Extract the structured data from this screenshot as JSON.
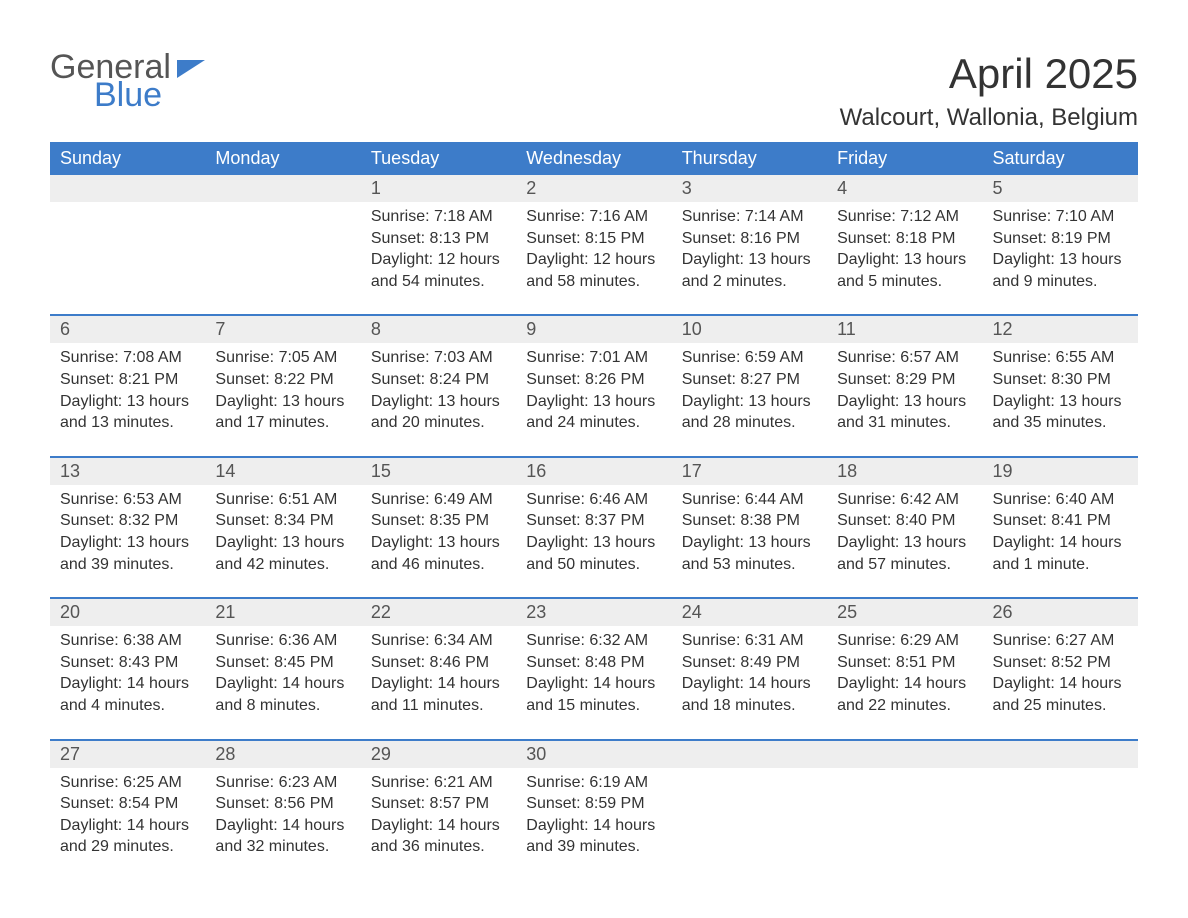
{
  "logo": {
    "line1": "General",
    "line2": "Blue"
  },
  "title": "April 2025",
  "location": "Walcourt, Wallonia, Belgium",
  "colors": {
    "header_bar": "#3d7cc9",
    "daynum_bg": "#eeeeee",
    "text": "#333333",
    "background": "#ffffff"
  },
  "weekdays": [
    "Sunday",
    "Monday",
    "Tuesday",
    "Wednesday",
    "Thursday",
    "Friday",
    "Saturday"
  ],
  "weeks": [
    [
      {
        "empty": true
      },
      {
        "empty": true
      },
      {
        "day": "1",
        "sunrise": "Sunrise: 7:18 AM",
        "sunset": "Sunset: 8:13 PM",
        "dl1": "Daylight: 12 hours",
        "dl2": "and 54 minutes."
      },
      {
        "day": "2",
        "sunrise": "Sunrise: 7:16 AM",
        "sunset": "Sunset: 8:15 PM",
        "dl1": "Daylight: 12 hours",
        "dl2": "and 58 minutes."
      },
      {
        "day": "3",
        "sunrise": "Sunrise: 7:14 AM",
        "sunset": "Sunset: 8:16 PM",
        "dl1": "Daylight: 13 hours",
        "dl2": "and 2 minutes."
      },
      {
        "day": "4",
        "sunrise": "Sunrise: 7:12 AM",
        "sunset": "Sunset: 8:18 PM",
        "dl1": "Daylight: 13 hours",
        "dl2": "and 5 minutes."
      },
      {
        "day": "5",
        "sunrise": "Sunrise: 7:10 AM",
        "sunset": "Sunset: 8:19 PM",
        "dl1": "Daylight: 13 hours",
        "dl2": "and 9 minutes."
      }
    ],
    [
      {
        "day": "6",
        "sunrise": "Sunrise: 7:08 AM",
        "sunset": "Sunset: 8:21 PM",
        "dl1": "Daylight: 13 hours",
        "dl2": "and 13 minutes."
      },
      {
        "day": "7",
        "sunrise": "Sunrise: 7:05 AM",
        "sunset": "Sunset: 8:22 PM",
        "dl1": "Daylight: 13 hours",
        "dl2": "and 17 minutes."
      },
      {
        "day": "8",
        "sunrise": "Sunrise: 7:03 AM",
        "sunset": "Sunset: 8:24 PM",
        "dl1": "Daylight: 13 hours",
        "dl2": "and 20 minutes."
      },
      {
        "day": "9",
        "sunrise": "Sunrise: 7:01 AM",
        "sunset": "Sunset: 8:26 PM",
        "dl1": "Daylight: 13 hours",
        "dl2": "and 24 minutes."
      },
      {
        "day": "10",
        "sunrise": "Sunrise: 6:59 AM",
        "sunset": "Sunset: 8:27 PM",
        "dl1": "Daylight: 13 hours",
        "dl2": "and 28 minutes."
      },
      {
        "day": "11",
        "sunrise": "Sunrise: 6:57 AM",
        "sunset": "Sunset: 8:29 PM",
        "dl1": "Daylight: 13 hours",
        "dl2": "and 31 minutes."
      },
      {
        "day": "12",
        "sunrise": "Sunrise: 6:55 AM",
        "sunset": "Sunset: 8:30 PM",
        "dl1": "Daylight: 13 hours",
        "dl2": "and 35 minutes."
      }
    ],
    [
      {
        "day": "13",
        "sunrise": "Sunrise: 6:53 AM",
        "sunset": "Sunset: 8:32 PM",
        "dl1": "Daylight: 13 hours",
        "dl2": "and 39 minutes."
      },
      {
        "day": "14",
        "sunrise": "Sunrise: 6:51 AM",
        "sunset": "Sunset: 8:34 PM",
        "dl1": "Daylight: 13 hours",
        "dl2": "and 42 minutes."
      },
      {
        "day": "15",
        "sunrise": "Sunrise: 6:49 AM",
        "sunset": "Sunset: 8:35 PM",
        "dl1": "Daylight: 13 hours",
        "dl2": "and 46 minutes."
      },
      {
        "day": "16",
        "sunrise": "Sunrise: 6:46 AM",
        "sunset": "Sunset: 8:37 PM",
        "dl1": "Daylight: 13 hours",
        "dl2": "and 50 minutes."
      },
      {
        "day": "17",
        "sunrise": "Sunrise: 6:44 AM",
        "sunset": "Sunset: 8:38 PM",
        "dl1": "Daylight: 13 hours",
        "dl2": "and 53 minutes."
      },
      {
        "day": "18",
        "sunrise": "Sunrise: 6:42 AM",
        "sunset": "Sunset: 8:40 PM",
        "dl1": "Daylight: 13 hours",
        "dl2": "and 57 minutes."
      },
      {
        "day": "19",
        "sunrise": "Sunrise: 6:40 AM",
        "sunset": "Sunset: 8:41 PM",
        "dl1": "Daylight: 14 hours",
        "dl2": "and 1 minute."
      }
    ],
    [
      {
        "day": "20",
        "sunrise": "Sunrise: 6:38 AM",
        "sunset": "Sunset: 8:43 PM",
        "dl1": "Daylight: 14 hours",
        "dl2": "and 4 minutes."
      },
      {
        "day": "21",
        "sunrise": "Sunrise: 6:36 AM",
        "sunset": "Sunset: 8:45 PM",
        "dl1": "Daylight: 14 hours",
        "dl2": "and 8 minutes."
      },
      {
        "day": "22",
        "sunrise": "Sunrise: 6:34 AM",
        "sunset": "Sunset: 8:46 PM",
        "dl1": "Daylight: 14 hours",
        "dl2": "and 11 minutes."
      },
      {
        "day": "23",
        "sunrise": "Sunrise: 6:32 AM",
        "sunset": "Sunset: 8:48 PM",
        "dl1": "Daylight: 14 hours",
        "dl2": "and 15 minutes."
      },
      {
        "day": "24",
        "sunrise": "Sunrise: 6:31 AM",
        "sunset": "Sunset: 8:49 PM",
        "dl1": "Daylight: 14 hours",
        "dl2": "and 18 minutes."
      },
      {
        "day": "25",
        "sunrise": "Sunrise: 6:29 AM",
        "sunset": "Sunset: 8:51 PM",
        "dl1": "Daylight: 14 hours",
        "dl2": "and 22 minutes."
      },
      {
        "day": "26",
        "sunrise": "Sunrise: 6:27 AM",
        "sunset": "Sunset: 8:52 PM",
        "dl1": "Daylight: 14 hours",
        "dl2": "and 25 minutes."
      }
    ],
    [
      {
        "day": "27",
        "sunrise": "Sunrise: 6:25 AM",
        "sunset": "Sunset: 8:54 PM",
        "dl1": "Daylight: 14 hours",
        "dl2": "and 29 minutes."
      },
      {
        "day": "28",
        "sunrise": "Sunrise: 6:23 AM",
        "sunset": "Sunset: 8:56 PM",
        "dl1": "Daylight: 14 hours",
        "dl2": "and 32 minutes."
      },
      {
        "day": "29",
        "sunrise": "Sunrise: 6:21 AM",
        "sunset": "Sunset: 8:57 PM",
        "dl1": "Daylight: 14 hours",
        "dl2": "and 36 minutes."
      },
      {
        "day": "30",
        "sunrise": "Sunrise: 6:19 AM",
        "sunset": "Sunset: 8:59 PM",
        "dl1": "Daylight: 14 hours",
        "dl2": "and 39 minutes."
      },
      {
        "empty": true
      },
      {
        "empty": true
      },
      {
        "empty": true
      }
    ]
  ]
}
